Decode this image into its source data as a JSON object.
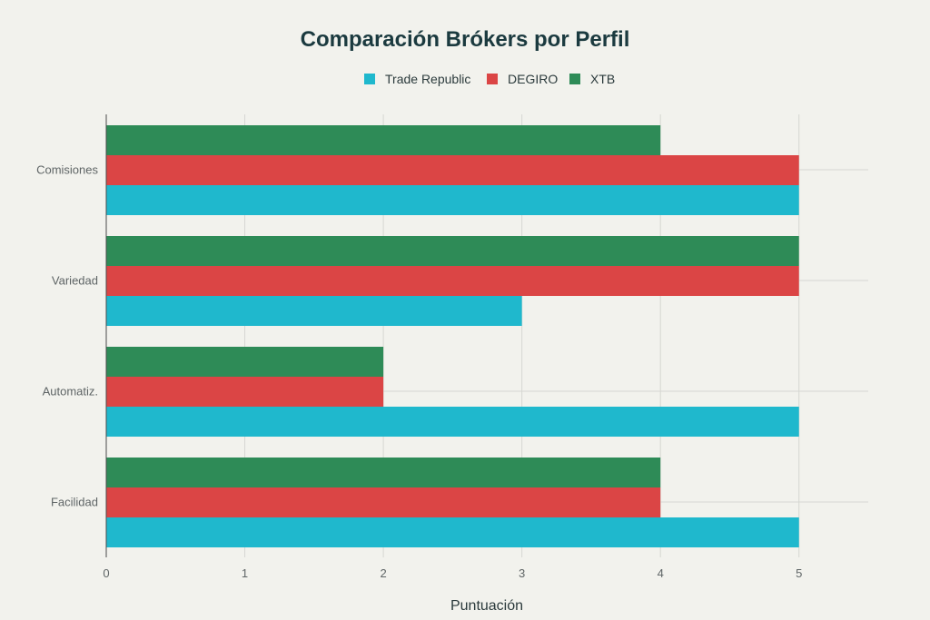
{
  "chart_data": {
    "type": "bar",
    "orientation": "horizontal",
    "title": "Comparación Brókers por Perfil",
    "xlabel": "Puntuación",
    "ylabel": "",
    "xlim": [
      0,
      5.5
    ],
    "xticks": [
      0,
      1,
      2,
      3,
      4,
      5
    ],
    "grid": true,
    "legend_position": "top-center",
    "categories": [
      "Comisiones",
      "Variedad",
      "Automatiz.",
      "Facilidad"
    ],
    "series": [
      {
        "name": "Trade Republic",
        "color": "#1fb8cd",
        "values": [
          5,
          3,
          5,
          5
        ]
      },
      {
        "name": "DEGIRO",
        "color": "#db4545",
        "values": [
          5,
          5,
          2,
          4
        ]
      },
      {
        "name": "XTB",
        "color": "#2e8b57",
        "values": [
          4,
          5,
          2,
          4
        ]
      }
    ]
  }
}
